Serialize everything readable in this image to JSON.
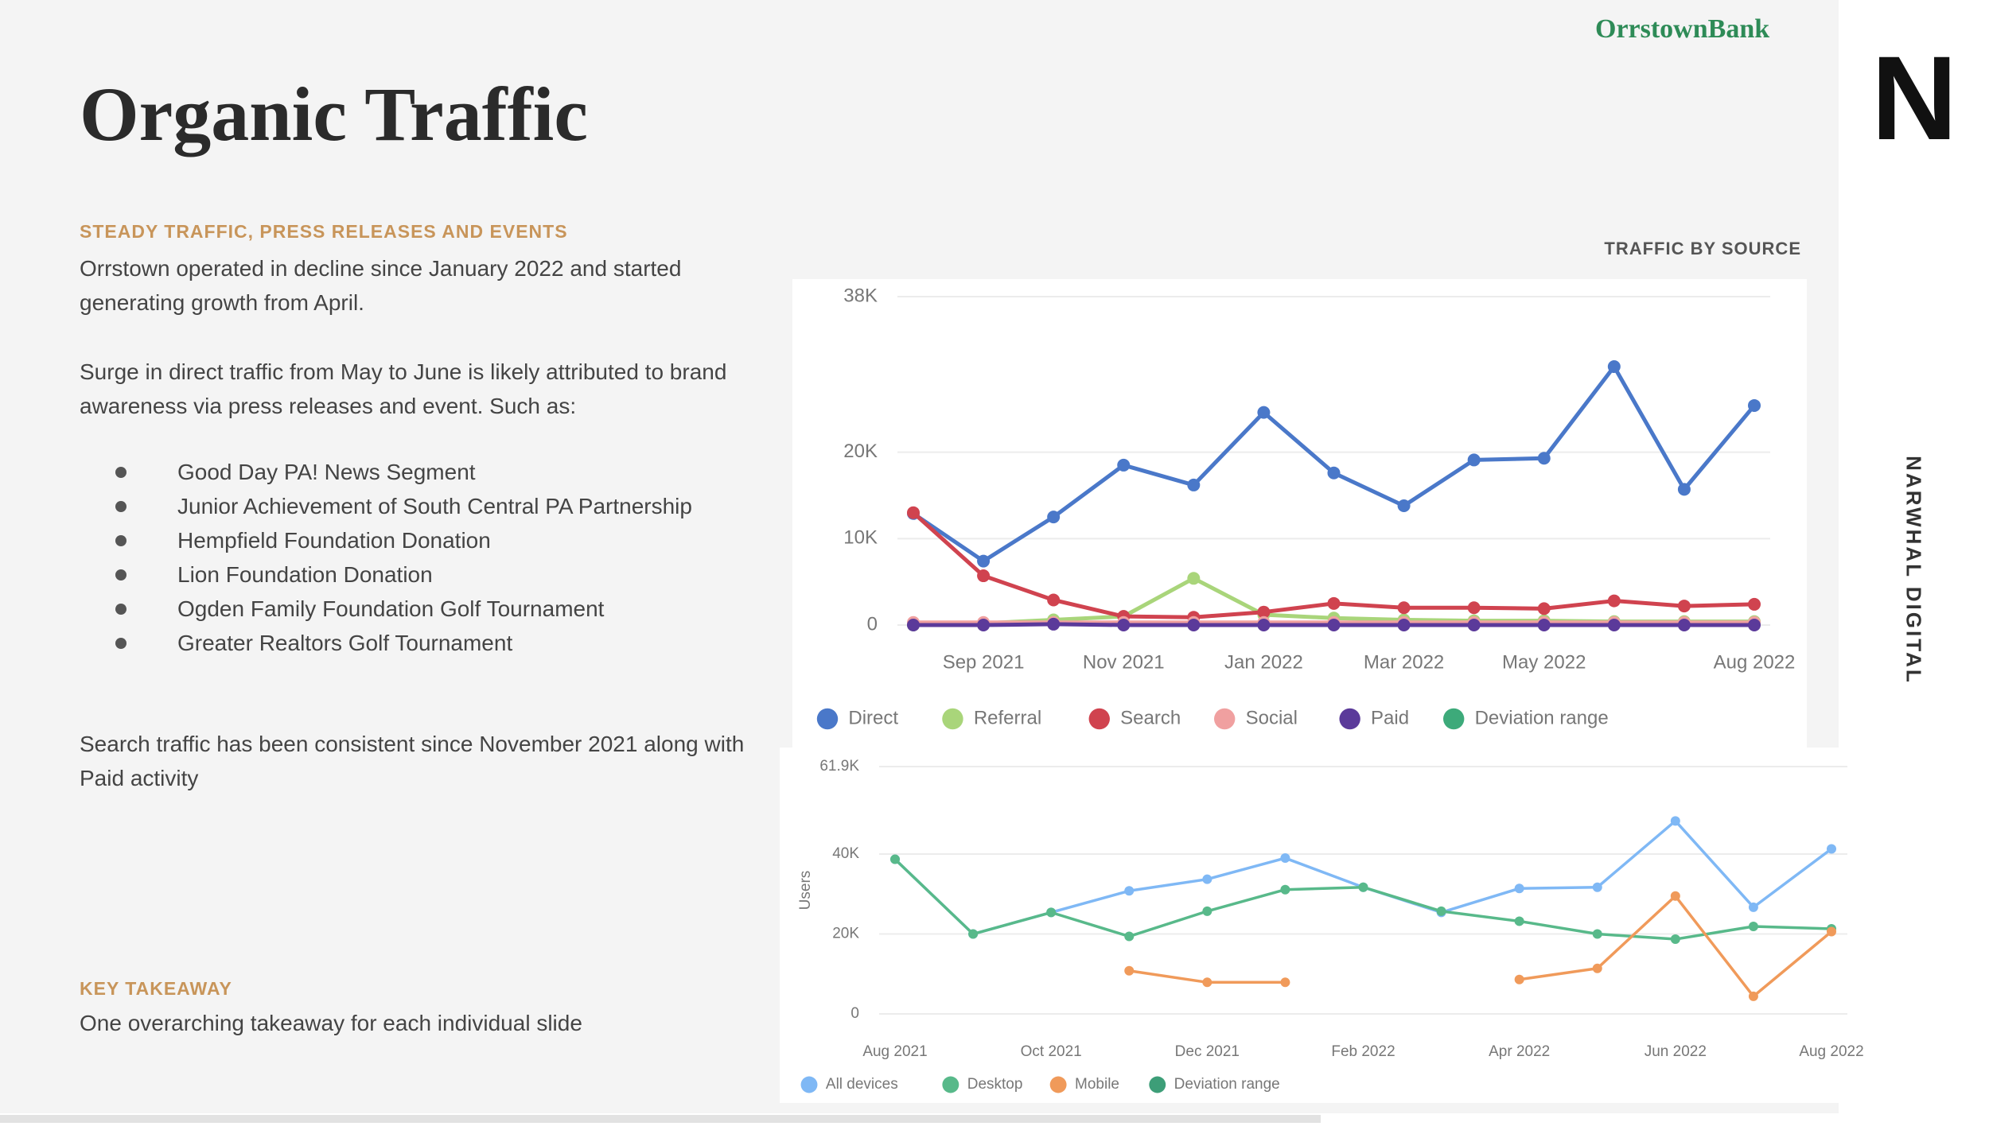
{
  "header": {
    "title": "Organic Traffic",
    "brand": "OrrstownBank",
    "logo": "N",
    "side_label": "NARWHAL DIGITAL"
  },
  "summary": {
    "heading": "STEADY TRAFFIC, PRESS RELEASES AND EVENTS",
    "paragraphs": [
      "Orrstown operated in decline since January 2022 and started generating growth from April.",
      "Surge in direct traffic from May to June is likely attributed to brand awareness via press releases and event. Such as:"
    ],
    "bullets": [
      "Good Day PA! News Segment",
      "Junior Achievement of South Central PA Partnership",
      "Hempfield Foundation Donation",
      "Lion Foundation Donation",
      "Ogden Family Foundation Golf Tournament",
      "Greater Realtors Golf Tournament"
    ],
    "closing": "Search traffic has been consistent since November 2021 along with Paid activity"
  },
  "takeaway": {
    "heading": "KEY TAKEAWAY",
    "text": "One overarching takeaway for each individual slide"
  },
  "chart_data": [
    {
      "type": "line",
      "title": "TRAFFIC BY SOURCE",
      "categories": [
        null,
        "Sep 2021",
        null,
        "Nov 2021",
        null,
        "Jan 2022",
        null,
        "Mar 2022",
        null,
        "May 2022",
        null,
        null,
        "Aug 2022"
      ],
      "ylim": [
        0,
        38000
      ],
      "yticks": [
        0,
        {
          "value": 10000,
          "label": "10K"
        },
        {
          "value": 20000,
          "label": "20K"
        },
        {
          "value": 38000,
          "label": "38K"
        }
      ],
      "grid": true,
      "series": [
        {
          "name": "Direct",
          "color": "#4a78c9",
          "values": [
            12900,
            7400,
            12500,
            18500,
            16200,
            24600,
            17600,
            13800,
            19100,
            19300,
            29900,
            15700,
            25400
          ]
        },
        {
          "name": "Referral",
          "color": "#a9d57a",
          "values": [
            0,
            200,
            600,
            1000,
            5400,
            1200,
            800,
            600,
            500,
            500,
            400,
            400,
            400
          ]
        },
        {
          "name": "Search",
          "color": "#d0434f",
          "values": [
            13000,
            5700,
            2900,
            1000,
            900,
            1500,
            2500,
            2000,
            2000,
            1900,
            2800,
            2200,
            2400
          ]
        },
        {
          "name": "Social",
          "color": "#f0a0a0",
          "values": [
            300,
            300,
            300,
            300,
            300,
            300,
            300,
            300,
            300,
            300,
            300,
            300,
            300
          ]
        },
        {
          "name": "Paid",
          "color": "#5b3a9a",
          "values": [
            0,
            0,
            100,
            0,
            0,
            0,
            0,
            0,
            0,
            0,
            0,
            0,
            0
          ]
        },
        {
          "name": "Deviation range",
          "color": "#3daa7a",
          "values": [
            null,
            null,
            null,
            null,
            null,
            null,
            null,
            null,
            null,
            null,
            null,
            null,
            null
          ]
        }
      ]
    },
    {
      "type": "line",
      "y_label": "Users",
      "categories": [
        "Aug 2021",
        null,
        "Oct 2021",
        null,
        "Dec 2021",
        null,
        "Feb 2022",
        null,
        "Apr 2022",
        null,
        "Jun 2022",
        null,
        "Aug 2022"
      ],
      "ylim": [
        0,
        61900
      ],
      "yticks": [
        0,
        {
          "value": 20000,
          "label": "20K"
        },
        {
          "value": 40000,
          "label": "40K"
        },
        {
          "value": 61900,
          "label": "61.9K"
        }
      ],
      "grid": true,
      "series": [
        {
          "name": "All devices",
          "color": "#7fb8f5",
          "values": [
            38700,
            20000,
            25400,
            30800,
            33700,
            39000,
            31700,
            25400,
            31400,
            31700,
            48300,
            26700,
            41300
          ]
        },
        {
          "name": "Desktop",
          "color": "#58b98a",
          "values": [
            38700,
            20000,
            25400,
            19400,
            25700,
            31100,
            31700,
            25700,
            23200,
            20000,
            18700,
            21900,
            21300
          ]
        },
        {
          "name": "Mobile",
          "color": "#f09a5a",
          "values": [
            null,
            null,
            null,
            10800,
            7900,
            7900,
            null,
            null,
            8600,
            11400,
            29500,
            4400,
            20600
          ]
        },
        {
          "name": "Deviation range",
          "color": "#3d9e78",
          "values": [
            null,
            null,
            null,
            null,
            null,
            null,
            null,
            null,
            null,
            null,
            null,
            null,
            null
          ]
        }
      ]
    }
  ]
}
